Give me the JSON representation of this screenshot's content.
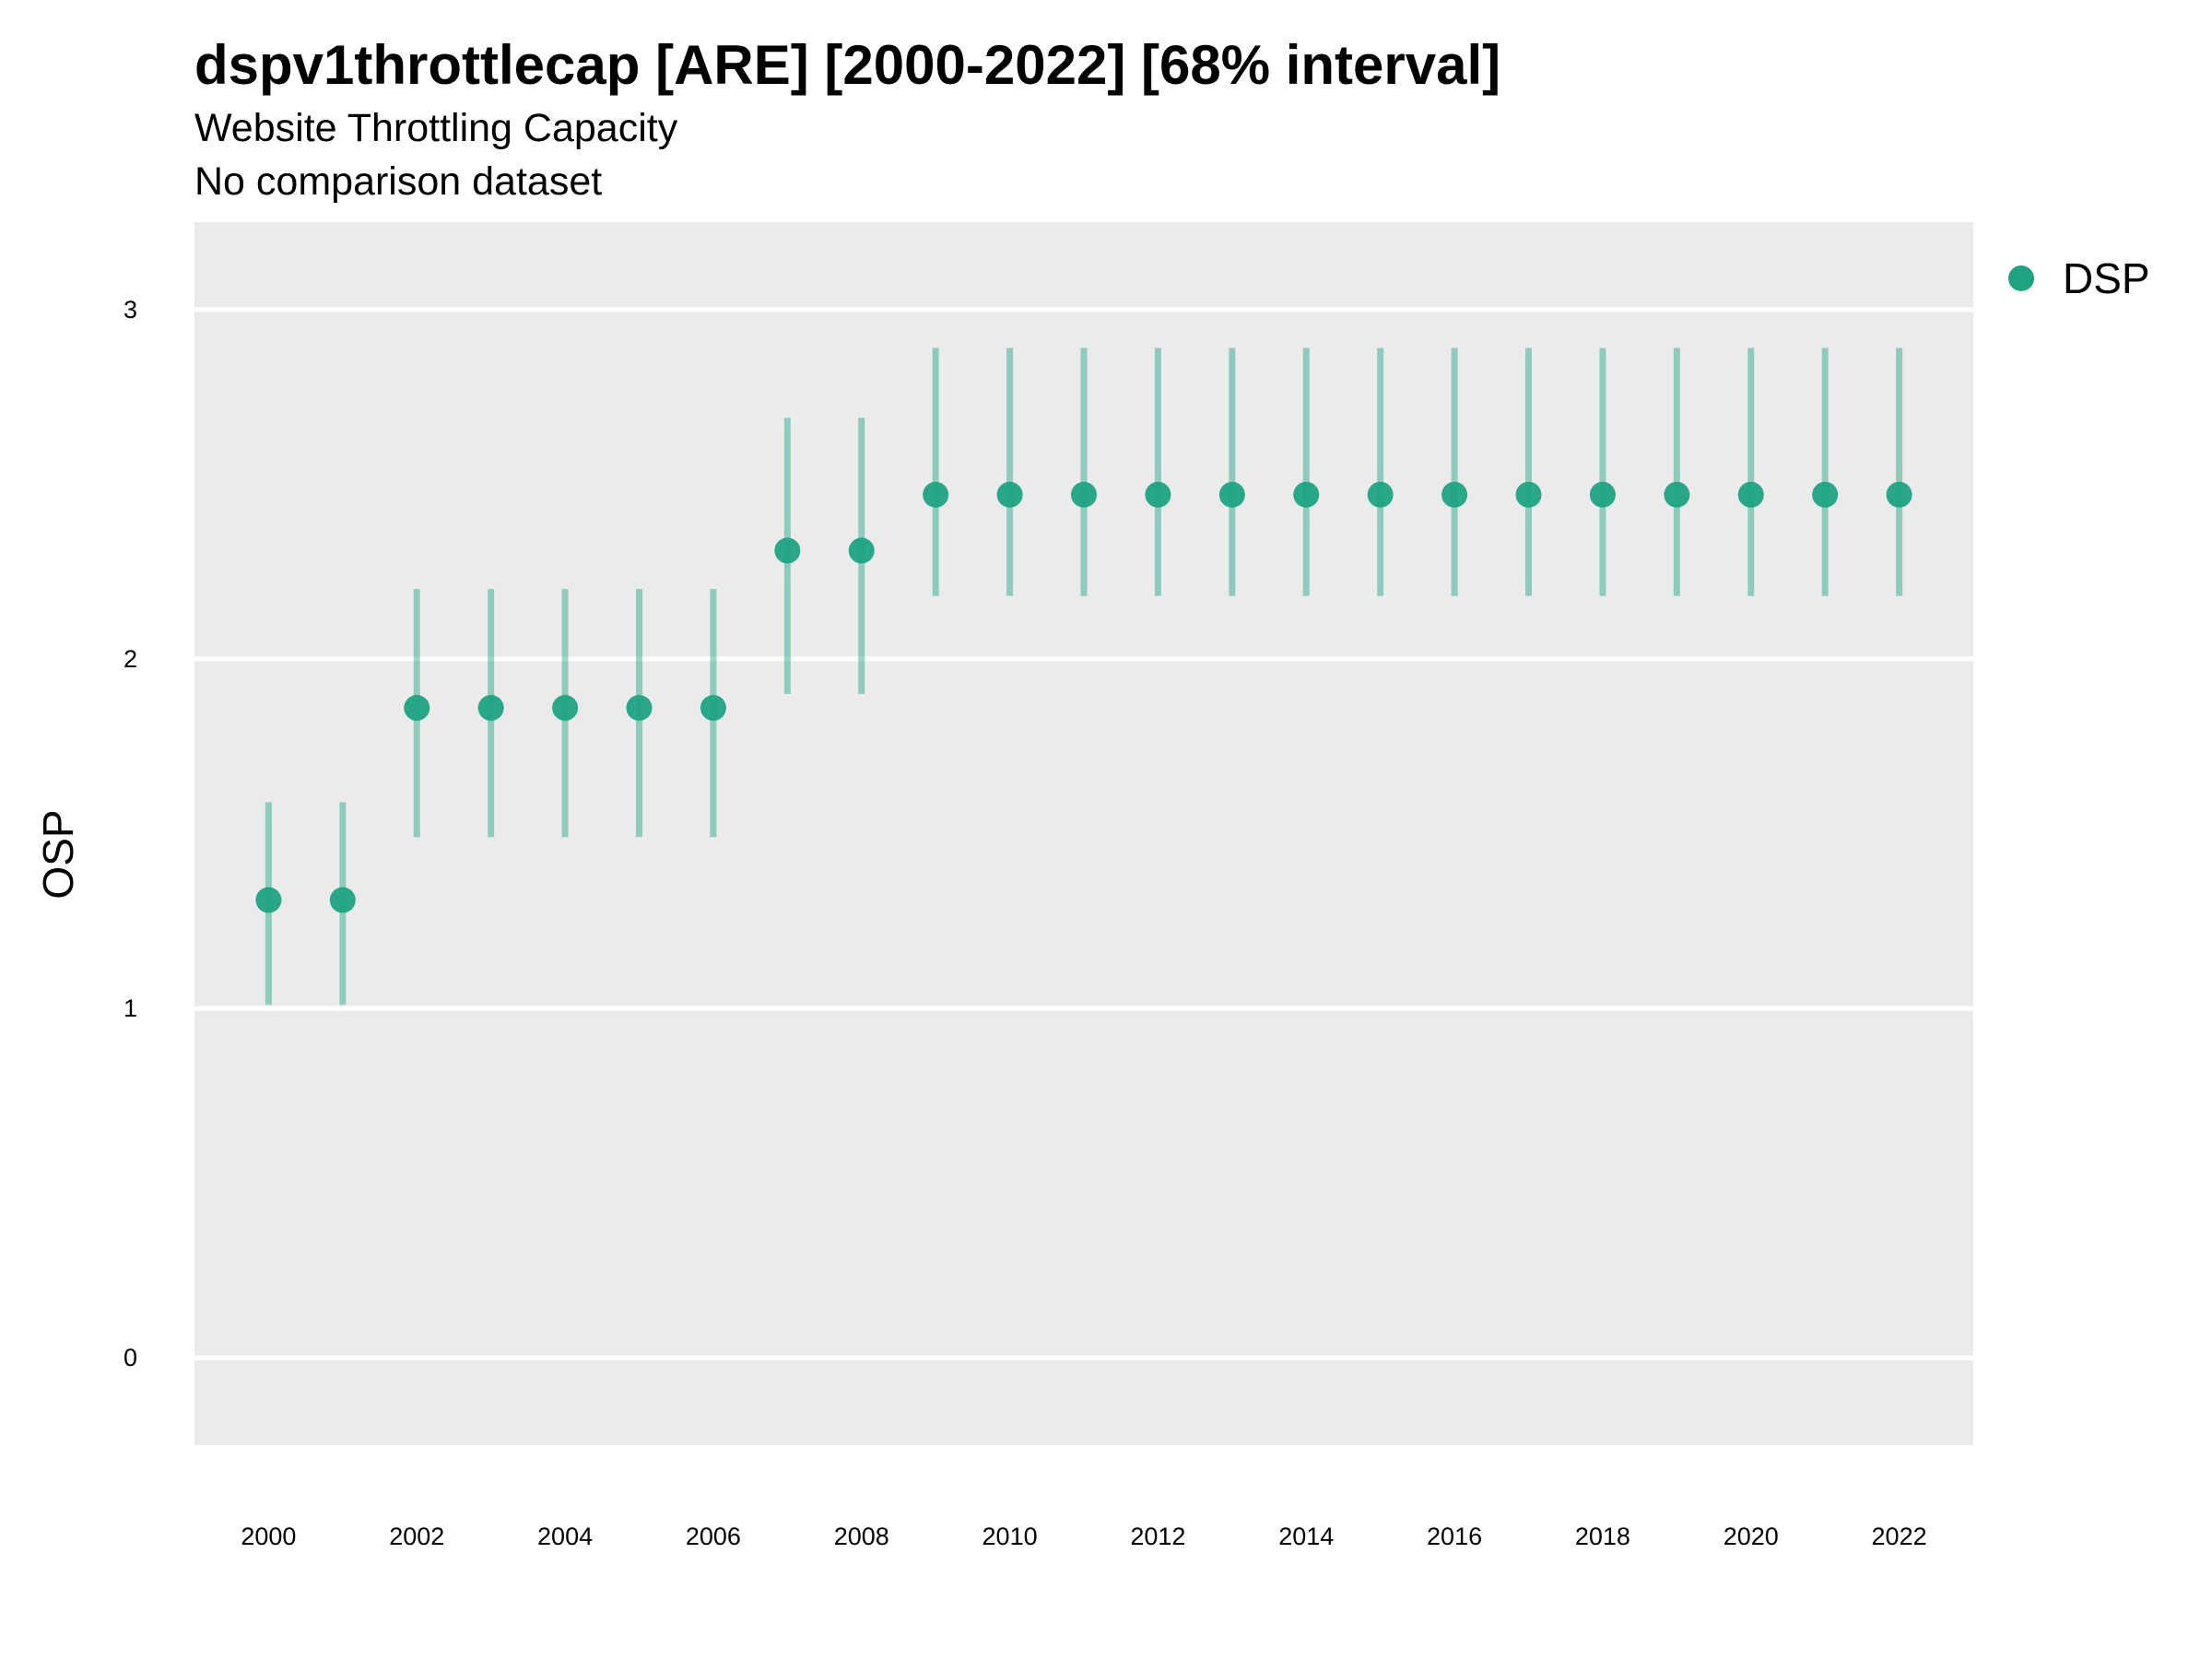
{
  "chart_data": {
    "type": "scatter",
    "title": "dspv1throttlecap [ARE] [2000-2022] [68% interval]",
    "subtitle": "Website Throttling Capacity",
    "subtitle2": "No comparison dataset",
    "xlabel": "",
    "ylabel": "OSP",
    "xlim": [
      1999,
      2023
    ],
    "ylim": [
      -0.25,
      3.25
    ],
    "xticks": [
      2000,
      2002,
      2004,
      2006,
      2008,
      2010,
      2012,
      2014,
      2016,
      2018,
      2020,
      2022
    ],
    "yticks": [
      0,
      1,
      2,
      3
    ],
    "grid": true,
    "legend_position": "right",
    "series": [
      {
        "name": "DSP",
        "color": "#1fa383",
        "x": [
          2000,
          2001,
          2002,
          2003,
          2004,
          2005,
          2006,
          2007,
          2008,
          2009,
          2010,
          2011,
          2012,
          2013,
          2014,
          2015,
          2016,
          2017,
          2018,
          2019,
          2020,
          2021,
          2022
        ],
        "y": [
          1.31,
          1.31,
          1.86,
          1.86,
          1.86,
          1.86,
          1.86,
          2.31,
          2.31,
          2.47,
          2.47,
          2.47,
          2.47,
          2.47,
          2.47,
          2.47,
          2.47,
          2.47,
          2.47,
          2.47,
          2.47,
          2.47,
          2.47
        ],
        "lower": [
          1.01,
          1.01,
          1.49,
          1.49,
          1.49,
          1.49,
          1.49,
          1.9,
          1.9,
          2.18,
          2.18,
          2.18,
          2.18,
          2.18,
          2.18,
          2.18,
          2.18,
          2.18,
          2.18,
          2.18,
          2.18,
          2.18,
          2.18
        ],
        "upper": [
          1.59,
          1.59,
          2.2,
          2.2,
          2.2,
          2.2,
          2.2,
          2.69,
          2.69,
          2.89,
          2.89,
          2.89,
          2.89,
          2.89,
          2.89,
          2.89,
          2.89,
          2.89,
          2.89,
          2.89,
          2.89,
          2.89,
          2.89
        ]
      }
    ]
  }
}
